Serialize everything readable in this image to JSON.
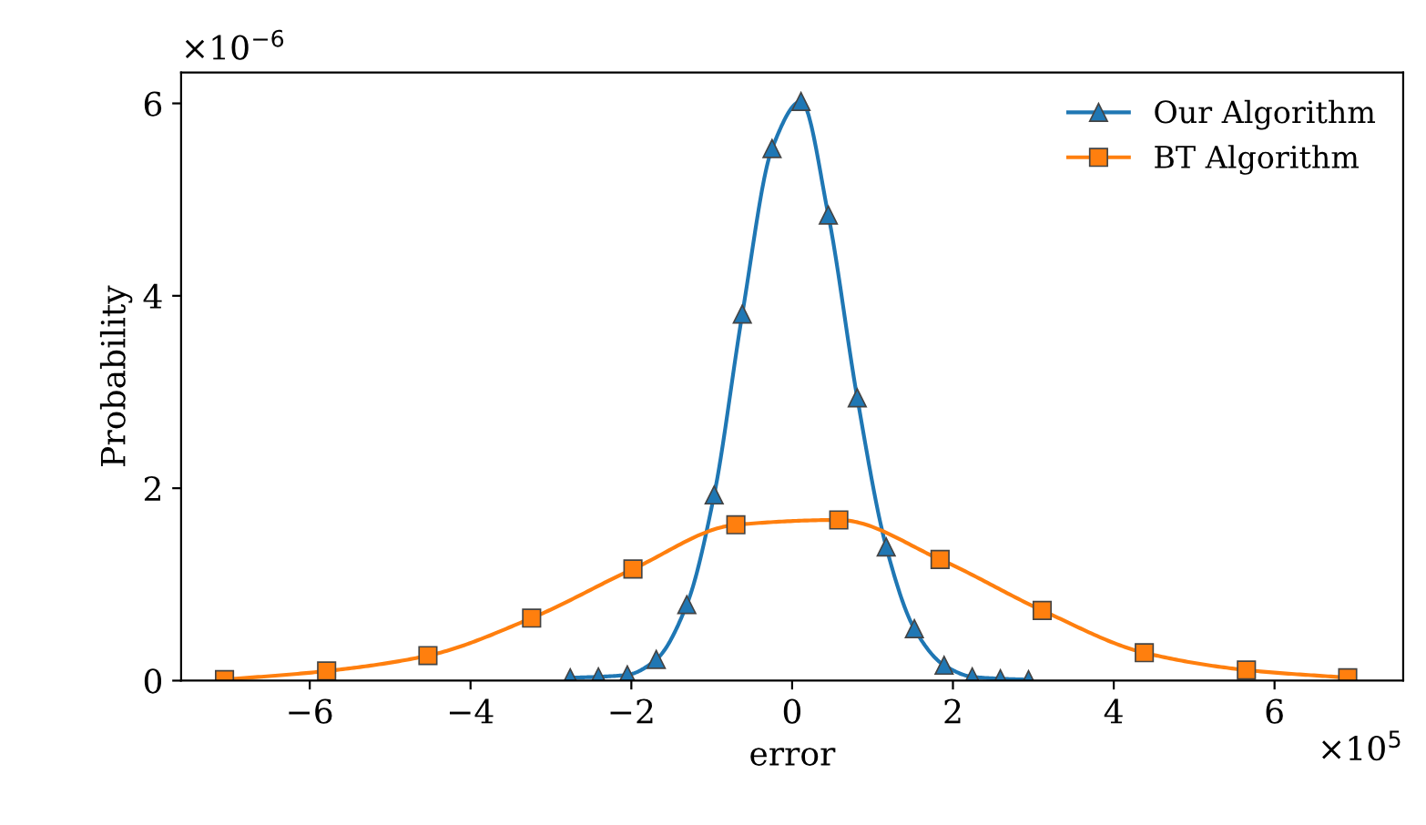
{
  "chart_data": {
    "type": "line",
    "xlabel": "error",
    "ylabel": "Probability",
    "legend": "top right",
    "grid": false,
    "xlim": [
      -7.6,
      7.6
    ],
    "xticks": [
      {
        "value": -6,
        "label": "−6"
      },
      {
        "value": -4,
        "label": "−4"
      },
      {
        "value": -2,
        "label": "−2"
      },
      0,
      2,
      4,
      6
    ],
    "ylim": [
      0,
      6.32
    ],
    "yticks": [
      0,
      2,
      4,
      6
    ],
    "annotations": [
      "×10$^{−6}$",
      "×10$^{5}$"
    ],
    "series": [
      {
        "name": "Our Algorithm",
        "color": "#1f77b4",
        "marker": "triangle",
        "x": [
          -2.76,
          -2.41,
          -2.05,
          -1.69,
          -1.31,
          -0.97,
          -0.62,
          -0.25,
          0.11,
          0.45,
          0.81,
          1.17,
          1.52,
          1.89,
          2.24,
          2.59,
          2.94
        ],
        "values": [
          0.03,
          0.04,
          0.06,
          0.22,
          0.79,
          1.93,
          3.81,
          5.53,
          6.02,
          4.84,
          2.94,
          1.39,
          0.54,
          0.16,
          0.04,
          0.02,
          0.01
        ]
      },
      {
        "name": "BT Algorithm",
        "color": "#ff7f0e",
        "marker": "square",
        "x": [
          -7.06,
          -5.79,
          -4.53,
          -3.24,
          -1.98,
          -0.7,
          0.58,
          1.84,
          3.11,
          4.38,
          5.65,
          6.91
        ],
        "values": [
          0.01,
          0.1,
          0.26,
          0.65,
          1.16,
          1.62,
          1.67,
          1.26,
          0.73,
          0.29,
          0.11,
          0.03
        ]
      }
    ]
  }
}
